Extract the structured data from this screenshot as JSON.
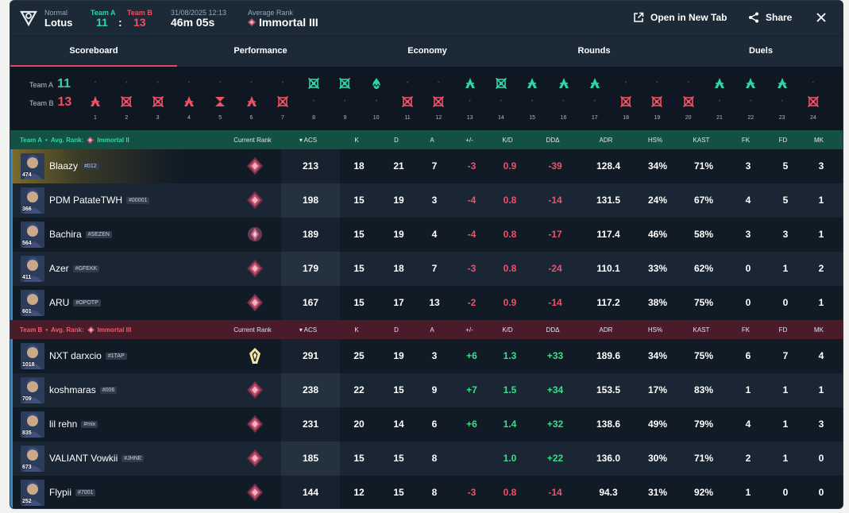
{
  "header": {
    "mode": "Normal",
    "map": "Lotus",
    "team_a_label": "Team A",
    "team_b_label": "Team B",
    "team_a_score": "11",
    "colon": ":",
    "team_b_score": "13",
    "date": "31/08/2025 12:13",
    "duration": "46m 05s",
    "avg_rank_label": "Average Rank",
    "avg_rank": "Immortal III",
    "open_new_tab": "Open in New Tab",
    "share": "Share"
  },
  "tabs": [
    "Scoreboard",
    "Performance",
    "Economy",
    "Rounds",
    "Duels"
  ],
  "colors": {
    "team_a": "#2fd6a5",
    "team_b": "#f05064",
    "accent": "#e04a5c"
  },
  "timeline": {
    "team_a_label": "Team A",
    "team_b_label": "Team B",
    "team_a_score": "11",
    "team_b_score": "13",
    "rounds": [
      {
        "n": "1",
        "winner": "B",
        "icon": "elimination"
      },
      {
        "n": "2",
        "winner": "B",
        "icon": "defuse"
      },
      {
        "n": "3",
        "winner": "B",
        "icon": "defuse"
      },
      {
        "n": "4",
        "winner": "B",
        "icon": "elimination"
      },
      {
        "n": "5",
        "winner": "B",
        "icon": "time"
      },
      {
        "n": "6",
        "winner": "B",
        "icon": "elimination"
      },
      {
        "n": "7",
        "winner": "B",
        "icon": "defuse"
      },
      {
        "n": "8",
        "winner": "A",
        "icon": "defuse"
      },
      {
        "n": "9",
        "winner": "A",
        "icon": "defuse"
      },
      {
        "n": "10",
        "winner": "A",
        "icon": "detonate"
      },
      {
        "n": "11",
        "winner": "B",
        "icon": "defuse"
      },
      {
        "n": "12",
        "winner": "B",
        "icon": "defuse"
      },
      {
        "n": "13",
        "winner": "A",
        "icon": "elimination"
      },
      {
        "n": "14",
        "winner": "A",
        "icon": "defuse"
      },
      {
        "n": "15",
        "winner": "A",
        "icon": "elimination"
      },
      {
        "n": "16",
        "winner": "A",
        "icon": "elimination"
      },
      {
        "n": "17",
        "winner": "A",
        "icon": "elimination"
      },
      {
        "n": "18",
        "winner": "B",
        "icon": "defuse"
      },
      {
        "n": "19",
        "winner": "B",
        "icon": "defuse"
      },
      {
        "n": "20",
        "winner": "B",
        "icon": "defuse"
      },
      {
        "n": "21",
        "winner": "A",
        "icon": "elimination"
      },
      {
        "n": "22",
        "winner": "A",
        "icon": "elimination"
      },
      {
        "n": "23",
        "winner": "A",
        "icon": "elimination"
      },
      {
        "n": "24",
        "winner": "B",
        "icon": "defuse"
      }
    ]
  },
  "columns": [
    "Current Rank",
    "ACS",
    "K",
    "D",
    "A",
    "+/-",
    "K/D",
    "DDΔ",
    "ADR",
    "HS%",
    "KAST",
    "FK",
    "FD",
    "MK"
  ],
  "teams": [
    {
      "label": "Team A",
      "bullet": "•",
      "avg_rank_text": "Avg. Rank:",
      "avg_rank": "Immortal II",
      "players": [
        {
          "name": "Blaazy",
          "tag": "#012",
          "level": "474",
          "rank_icon": "immortal-icon",
          "acs": "213",
          "k": "18",
          "d": "21",
          "a": "7",
          "pm": "-3",
          "kd": "0.9",
          "dd": "-39",
          "adr": "128.4",
          "hs": "34%",
          "kast": "71%",
          "fk": "3",
          "fd": "5",
          "mk": "3"
        },
        {
          "name": "PDM PatateTWH",
          "tag": "#00001",
          "level": "366",
          "rank_icon": "immortal-icon",
          "acs": "198",
          "k": "15",
          "d": "19",
          "a": "3",
          "pm": "-4",
          "kd": "0.8",
          "dd": "-14",
          "adr": "131.5",
          "hs": "24%",
          "kast": "67%",
          "fk": "4",
          "fd": "5",
          "mk": "1"
        },
        {
          "name": "Bachira",
          "tag": "#SEZEN",
          "level": "564",
          "rank_icon": "ascendant-icon",
          "acs": "189",
          "k": "15",
          "d": "19",
          "a": "4",
          "pm": "-4",
          "kd": "0.8",
          "dd": "-17",
          "adr": "117.4",
          "hs": "46%",
          "kast": "58%",
          "fk": "3",
          "fd": "3",
          "mk": "1"
        },
        {
          "name": "Azer",
          "tag": "#GFEKK",
          "level": "411",
          "rank_icon": "immortal-icon",
          "acs": "179",
          "k": "15",
          "d": "18",
          "a": "7",
          "pm": "-3",
          "kd": "0.8",
          "dd": "-24",
          "adr": "110.1",
          "hs": "33%",
          "kast": "62%",
          "fk": "0",
          "fd": "1",
          "mk": "2"
        },
        {
          "name": "ARU",
          "tag": "#OPOTP",
          "level": "601",
          "rank_icon": "immortal-icon",
          "acs": "167",
          "k": "15",
          "d": "17",
          "a": "13",
          "pm": "-2",
          "kd": "0.9",
          "dd": "-14",
          "adr": "117.2",
          "hs": "38%",
          "kast": "75%",
          "fk": "0",
          "fd": "0",
          "mk": "1"
        }
      ]
    },
    {
      "label": "Team B",
      "bullet": "•",
      "avg_rank_text": "Avg. Rank:",
      "avg_rank": "Immortal III",
      "players": [
        {
          "name": "NXT darxcio",
          "tag": "#1TAP",
          "level": "1018",
          "rank_icon": "radiant-icon",
          "acs": "291",
          "k": "25",
          "d": "19",
          "a": "3",
          "pm": "+6",
          "kd": "1.3",
          "dd": "+33",
          "adr": "189.6",
          "hs": "34%",
          "kast": "75%",
          "fk": "6",
          "fd": "7",
          "mk": "4"
        },
        {
          "name": "koshmaras",
          "tag": "#006",
          "level": "709",
          "rank_icon": "immortal-icon",
          "acs": "238",
          "k": "22",
          "d": "15",
          "a": "9",
          "pm": "+7",
          "kd": "1.5",
          "dd": "+34",
          "adr": "153.5",
          "hs": "17%",
          "kast": "83%",
          "fk": "1",
          "fd": "1",
          "mk": "1"
        },
        {
          "name": "lil rehn",
          "tag": "#mix",
          "level": "835",
          "rank_icon": "immortal-icon",
          "acs": "231",
          "k": "20",
          "d": "14",
          "a": "6",
          "pm": "+6",
          "kd": "1.4",
          "dd": "+32",
          "adr": "138.6",
          "hs": "49%",
          "kast": "79%",
          "fk": "4",
          "fd": "1",
          "mk": "3"
        },
        {
          "name": "VALIANT Vowkii",
          "tag": "#JHNE",
          "level": "673",
          "rank_icon": "immortal-icon",
          "acs": "185",
          "k": "15",
          "d": "15",
          "a": "8",
          "pm": "",
          "kd": "1.0",
          "dd": "+22",
          "adr": "136.0",
          "hs": "30%",
          "kast": "71%",
          "fk": "2",
          "fd": "1",
          "mk": "0"
        },
        {
          "name": "Flypii",
          "tag": "#7001",
          "level": "252",
          "rank_icon": "immortal-icon",
          "acs": "144",
          "k": "12",
          "d": "15",
          "a": "8",
          "pm": "-3",
          "kd": "0.8",
          "dd": "-14",
          "adr": "94.3",
          "hs": "31%",
          "kast": "92%",
          "fk": "1",
          "fd": "0",
          "mk": "0"
        }
      ]
    }
  ]
}
